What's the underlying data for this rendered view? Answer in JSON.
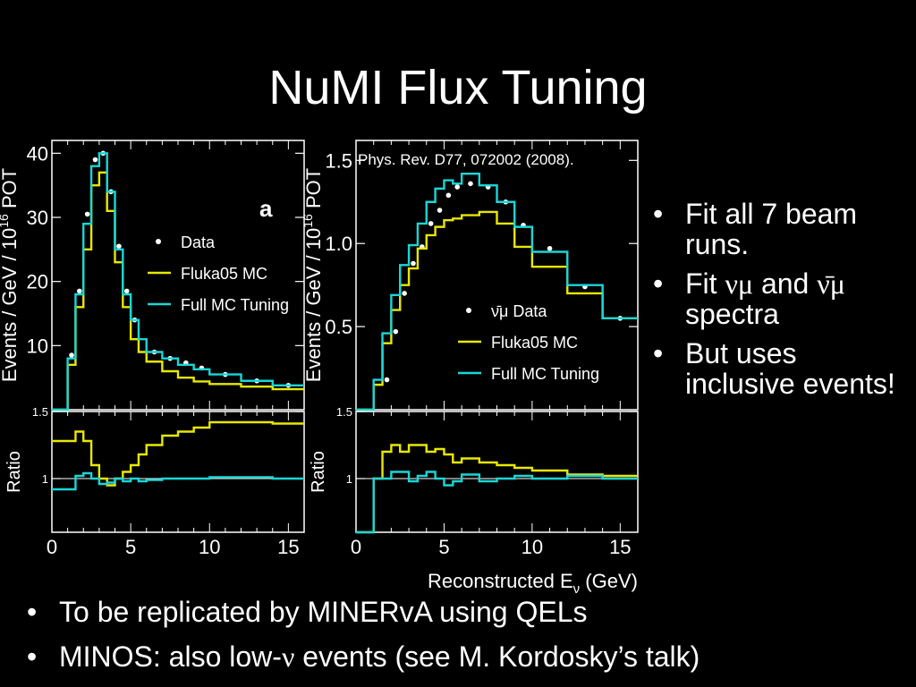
{
  "slide": {
    "title": "NuMI Flux Tuning",
    "right_bullets": [
      {
        "pre": "Fit all 7 beam runs.",
        "sym1": "",
        "mid": "",
        "sym2": "",
        "post": ""
      },
      {
        "pre": "Fit ",
        "sym1": "νμ",
        "mid": " and ",
        "sym2": "ν̄μ",
        "post": " spectra"
      },
      {
        "pre": "But uses inclusive events!",
        "sym1": "",
        "mid": "",
        "sym2": "",
        "post": ""
      }
    ],
    "bottom_bullets": [
      {
        "pre": "To be replicated by MINERvA using QELs",
        "sym": "",
        "post": ""
      },
      {
        "pre": "MINOS: also low-",
        "sym": "ν",
        "post": " events (see M. Kordosky’s talk)"
      }
    ],
    "bullet_symbol": "•",
    "colors": {
      "background": "#000000",
      "text": "#ffffff",
      "data": "#ffffff",
      "fluka": "#e8e800",
      "tuned": "#1ad6d6",
      "frame": "#ffffff"
    }
  },
  "chart_data": [
    {
      "type": "line",
      "panel_label": "a",
      "ylabel": "Events / GeV / 10^16 POT",
      "xlim": [
        0,
        16
      ],
      "ylim": [
        0,
        42
      ],
      "yticks": [
        10,
        20,
        30,
        40
      ],
      "edges": [
        0,
        0.5,
        1,
        1.5,
        2,
        2.5,
        3,
        3.5,
        4,
        4.5,
        5,
        5.5,
        6,
        7,
        8,
        9,
        10,
        12,
        14,
        16
      ],
      "legend": [
        "Data",
        "Fluka05 MC",
        "Full MC Tuning"
      ],
      "series": [
        {
          "name": "Data",
          "kind": "points",
          "x": [
            1.25,
            1.75,
            2.25,
            2.75,
            3.25,
            3.75,
            4.25,
            4.75,
            5.25,
            6.5,
            7.5,
            8.5,
            9.5,
            11,
            13,
            15
          ],
          "values": [
            8.5,
            18.5,
            30.5,
            39,
            40,
            34,
            25.5,
            18.5,
            14,
            9,
            8,
            7.3,
            6.5,
            5.5,
            4.5,
            3.8
          ]
        },
        {
          "name": "Fluka05 MC",
          "kind": "step",
          "values": [
            0,
            0,
            7,
            16,
            25,
            35,
            37,
            31,
            23,
            16,
            11,
            9,
            7.5,
            6,
            5,
            4.4,
            4,
            3.6,
            3.2
          ]
        },
        {
          "name": "Full MC Tuning",
          "kind": "step",
          "values": [
            0,
            0,
            8,
            18,
            29,
            38,
            40,
            34,
            25,
            18,
            14,
            11,
            9,
            8,
            7,
            6.3,
            5.5,
            4.5,
            3.8
          ]
        }
      ]
    },
    {
      "type": "line",
      "ylabel": "Ratio",
      "xlabel": "",
      "xlim": [
        0,
        16
      ],
      "ylim": [
        0.6,
        1.5
      ],
      "yticks": [
        1,
        1.5
      ],
      "xticks": [
        0,
        5,
        10,
        15
      ],
      "edges": [
        0,
        0.5,
        1,
        1.5,
        2,
        2.5,
        3,
        3.5,
        4,
        4.5,
        5,
        5.5,
        6,
        7,
        8,
        9,
        10,
        12,
        14,
        16
      ],
      "series": [
        {
          "name": "Fluka05 MC",
          "kind": "step",
          "values": [
            1.28,
            1.28,
            1.28,
            1.35,
            1.28,
            1.1,
            1.0,
            0.95,
            1.0,
            1.05,
            1.1,
            1.18,
            1.25,
            1.32,
            1.35,
            1.38,
            1.42,
            1.42,
            1.41
          ]
        },
        {
          "name": "Full MC Tuning",
          "kind": "step",
          "values": [
            0.92,
            0.92,
            0.92,
            1.02,
            1.04,
            1.0,
            0.96,
            0.97,
            1.0,
            0.98,
            1.0,
            0.98,
            0.99,
            1.0,
            1.0,
            1.0,
            1.01,
            1.01,
            1.0
          ]
        }
      ]
    },
    {
      "type": "line",
      "annotation": "Phys. Rev. D77, 072002 (2008).",
      "ylabel": "Events / GeV / 10^16 POT",
      "xlim": [
        0,
        16
      ],
      "ylim": [
        0,
        1.62
      ],
      "yticks": [
        0.5,
        1.0,
        1.5
      ],
      "yticklabels": [
        "0.5",
        "1.0",
        "1.5"
      ],
      "edges": [
        0,
        1,
        1.5,
        2,
        2.5,
        3,
        3.5,
        4,
        4.5,
        5,
        5.5,
        6,
        7,
        8,
        9,
        10,
        12,
        14,
        16
      ],
      "legend": [
        "ν̄μ Data",
        "Fluka05 MC",
        "Full MC Tuning"
      ],
      "series": [
        {
          "name": "ν̄μ Data",
          "kind": "points",
          "x": [
            1.75,
            2.25,
            2.75,
            3.25,
            3.75,
            4.25,
            4.75,
            5.25,
            5.75,
            6.5,
            7.5,
            8.5,
            9.5,
            11,
            13,
            15
          ],
          "values": [
            0.18,
            0.47,
            0.7,
            0.88,
            0.98,
            1.12,
            1.2,
            1.29,
            1.34,
            1.36,
            1.34,
            1.25,
            1.11,
            0.97,
            0.74,
            0.55
          ]
        },
        {
          "name": "Fluka05 MC",
          "kind": "step",
          "values": [
            0,
            0.15,
            0.4,
            0.6,
            0.75,
            0.85,
            0.97,
            1.05,
            1.1,
            1.14,
            1.15,
            1.17,
            1.19,
            1.12,
            0.98,
            0.86,
            0.7,
            0.55
          ]
        },
        {
          "name": "Full MC Tuning",
          "kind": "step",
          "values": [
            0,
            0.18,
            0.46,
            0.69,
            0.87,
            0.99,
            1.12,
            1.25,
            1.33,
            1.38,
            1.36,
            1.42,
            1.35,
            1.25,
            1.1,
            0.95,
            0.75,
            0.55
          ]
        }
      ]
    },
    {
      "type": "line",
      "ylabel": "Ratio",
      "xlabel": "Reconstructed Eν (GeV)",
      "xlim": [
        0,
        16
      ],
      "ylim": [
        0.6,
        1.5
      ],
      "yticks": [
        1,
        1.5
      ],
      "xticks": [
        0,
        5,
        10,
        15
      ],
      "edges": [
        0,
        1,
        1.5,
        2,
        2.5,
        3,
        3.5,
        4,
        4.5,
        5,
        5.5,
        6,
        7,
        8,
        9,
        10,
        12,
        14,
        16
      ],
      "series": [
        {
          "name": "Fluka05 MC",
          "kind": "step",
          "values": [
            0.6,
            1.0,
            1.2,
            1.25,
            1.2,
            1.25,
            1.25,
            1.2,
            1.22,
            1.18,
            1.12,
            1.15,
            1.12,
            1.1,
            1.08,
            1.06,
            1.03,
            1.02
          ]
        },
        {
          "name": "Full MC Tuning",
          "kind": "step",
          "values": [
            0.6,
            1.0,
            1.0,
            1.05,
            1.05,
            0.98,
            1.02,
            1.05,
            1.0,
            0.95,
            0.98,
            1.03,
            0.98,
            1.0,
            1.02,
            1.0,
            1.02,
            1.0
          ]
        }
      ]
    }
  ]
}
